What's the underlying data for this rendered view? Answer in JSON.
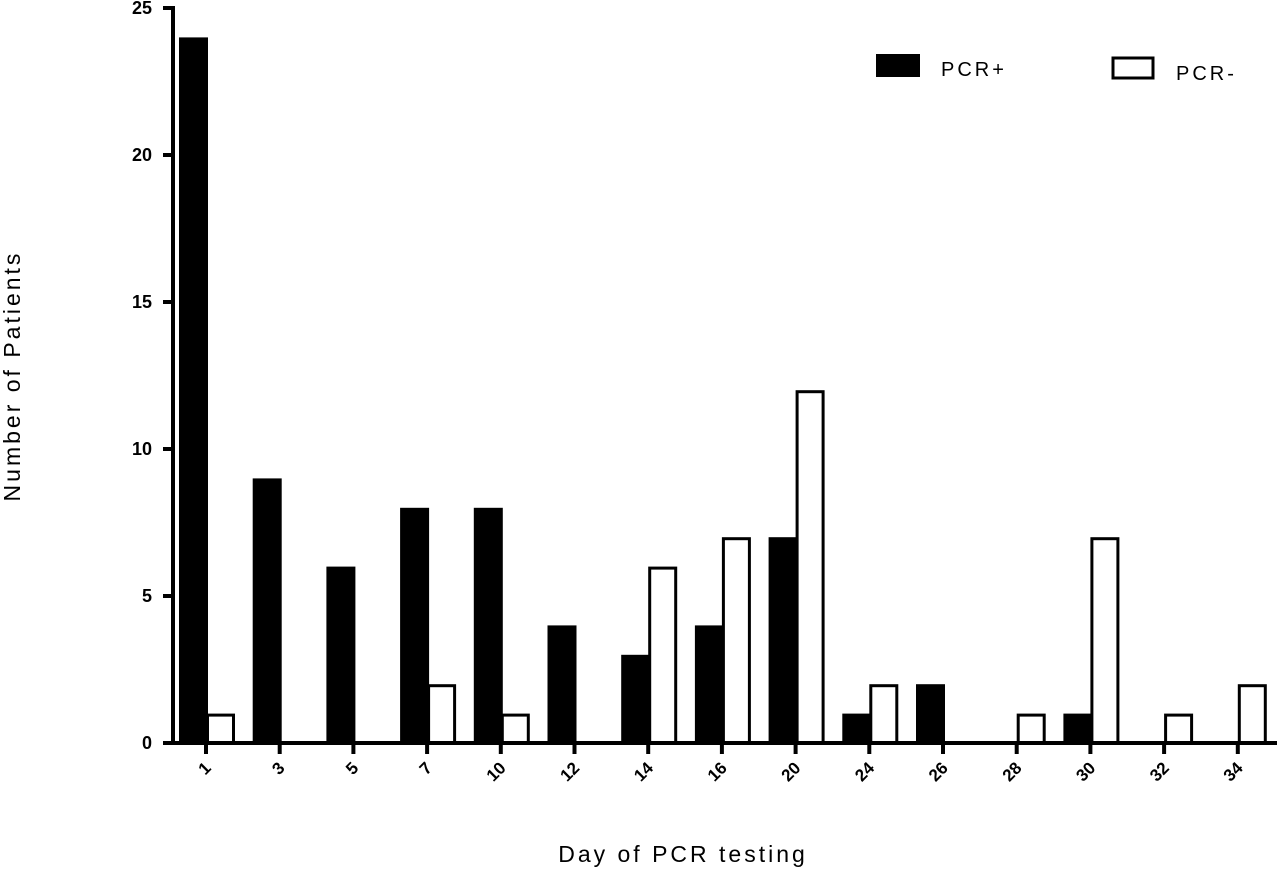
{
  "chart_data": {
    "type": "bar",
    "title": "",
    "xlabel": "Day of PCR testing",
    "ylabel": "Number of Patients",
    "categories": [
      "1",
      "3",
      "5",
      "7",
      "10",
      "12",
      "14",
      "16",
      "20",
      "24",
      "26",
      "28",
      "30",
      "32",
      "34"
    ],
    "series": [
      {
        "name": "PCR+",
        "fill": "#000000",
        "values": [
          24,
          9,
          6,
          8,
          8,
          4,
          3,
          4,
          7,
          1,
          2,
          0,
          1,
          0,
          0
        ]
      },
      {
        "name": "PCR-",
        "fill": "#ffffff",
        "values": [
          1,
          0,
          0,
          2,
          1,
          0,
          6,
          7,
          12,
          2,
          0,
          1,
          7,
          1,
          2
        ]
      }
    ],
    "ylim": [
      0,
      25
    ],
    "yticks": [
      0,
      5,
      10,
      15,
      20,
      25
    ],
    "grid": false,
    "legend_position": "top-right"
  }
}
